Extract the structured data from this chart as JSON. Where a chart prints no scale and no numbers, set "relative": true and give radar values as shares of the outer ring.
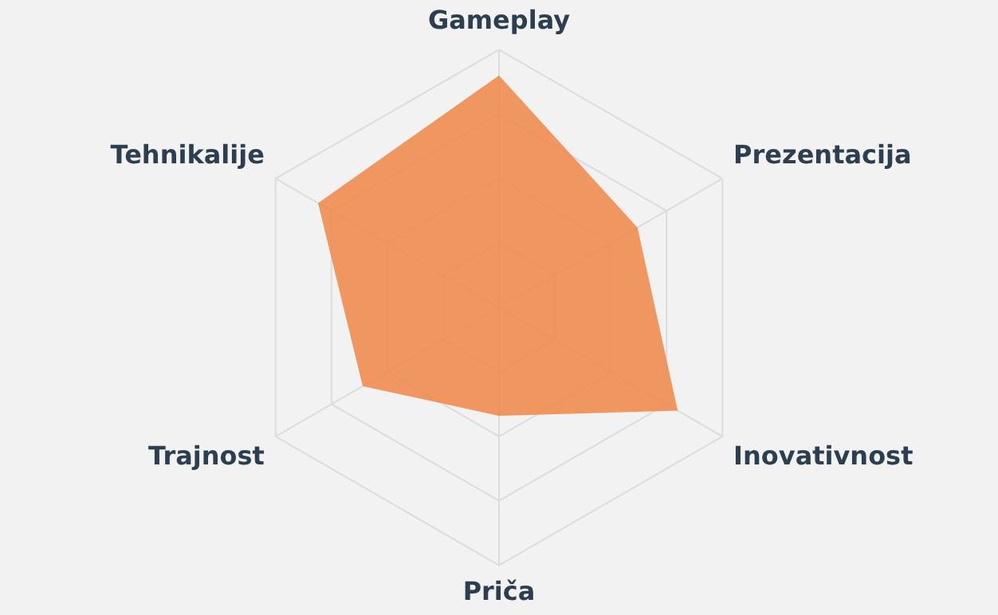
{
  "chart_data": {
    "type": "radar",
    "relative": true,
    "grid": true,
    "legend": false,
    "categories": [
      "Gameplay",
      "Prezentacija",
      "Inovativnost",
      "Priča",
      "Trajnost",
      "Tehnikalije"
    ],
    "series": [
      {
        "color": "#ef8a4c",
        "values": [
          0.9,
          0.62,
          0.8,
          0.42,
          0.61,
          0.81
        ]
      }
    ]
  }
}
